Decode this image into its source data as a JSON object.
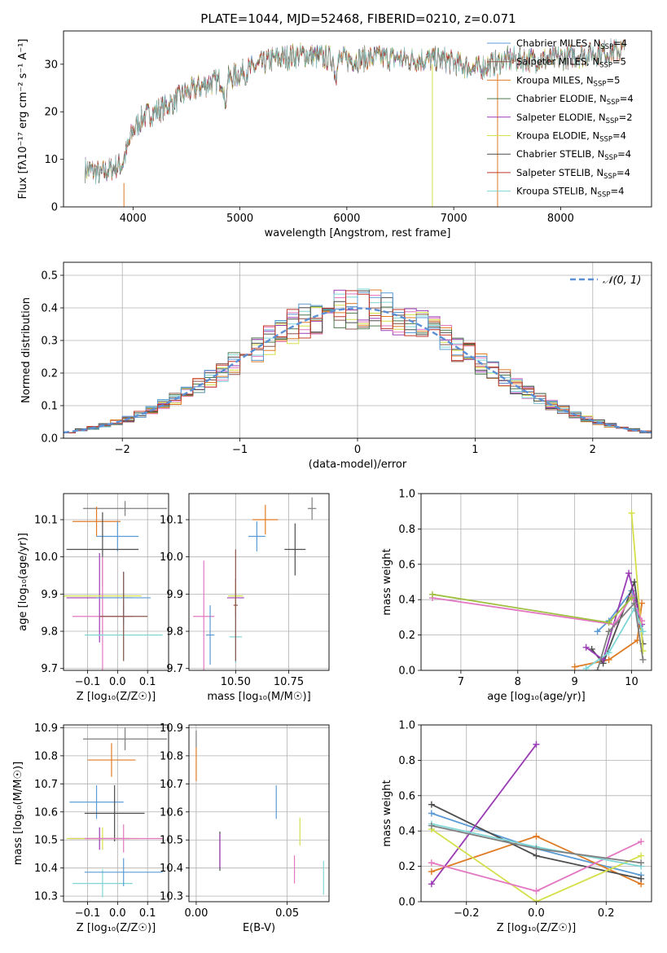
{
  "figure": {
    "title": "PLATE=1044, MJD=52468, FIBERID=0210, z=0.071"
  },
  "colors": {
    "model_colors": [
      "#5b9bd5",
      "#8c564b",
      "#e07b25",
      "#4f7a4f",
      "#9a3bb5",
      "#d4e04a",
      "#4d4d4d",
      "#c0392b",
      "#7fd6d6"
    ],
    "ssp_colors": [
      "#7f7f7f",
      "#e07b25",
      "#5b9bd5",
      "#4d4d4d",
      "#9a3bb5",
      "#d4e04a",
      "#e377c2",
      "#7fd6d6"
    ],
    "normal": "#5b8fd6",
    "grid": "#b0b0b0"
  },
  "chart_data": [
    {
      "id": "spectrum",
      "type": "line",
      "xlabel": "wavelength [Angstrom, rest frame]",
      "ylabel": "Flux [f$_\\lambda$10$^{-17}$ erg cm$^{-2}$ s$^{-1}$ A$^{-1}$]",
      "ylabel_display": "Flux [fλ10⁻¹⁷ erg cm⁻² s⁻¹ A⁻¹]",
      "xlim": [
        3350,
        8850
      ],
      "ylim": [
        0,
        37
      ],
      "xticks": [
        4000,
        5000,
        6000,
        7000,
        8000
      ],
      "yticks": [
        0,
        10,
        20,
        30
      ],
      "legend_loc": "upper right",
      "series": [
        {
          "name": "Chabrier MILES, N$_{SSP}$=4",
          "base": "Chabrier MILES, N",
          "sub": "SSP",
          "rest": "=4"
        },
        {
          "name": "Salpeter MILES, N$_{SSP}$=5",
          "base": "Salpeter MILES, N",
          "sub": "SSP",
          "rest": "=5"
        },
        {
          "name": "Kroupa MILES, N$_{SSP}$=5",
          "base": "Kroupa MILES, N",
          "sub": "SSP",
          "rest": "=5"
        },
        {
          "name": "Chabrier ELODIE, N$_{SSP}$=4",
          "base": "Chabrier ELODIE, N",
          "sub": "SSP",
          "rest": "=4"
        },
        {
          "name": "Salpeter ELODIE, N$_{SSP}$=2",
          "base": "Salpeter ELODIE, N",
          "sub": "SSP",
          "rest": "=2"
        },
        {
          "name": "Kroupa ELODIE, N$_{SSP}$=4",
          "base": "Kroupa ELODIE, N",
          "sub": "SSP",
          "rest": "=4"
        },
        {
          "name": "Chabrier STELIB, N$_{SSP}$=4",
          "base": "Chabrier STELIB, N",
          "sub": "SSP",
          "rest": "=4"
        },
        {
          "name": "Salpeter STELIB, N$_{SSP}$=4",
          "base": "Salpeter STELIB, N",
          "sub": "SSP",
          "rest": "=4"
        },
        {
          "name": "Kroupa STELIB, N$_{SSP}$=4",
          "base": "Kroupa STELIB, N",
          "sub": "SSP",
          "rest": "=4"
        }
      ],
      "continuum": [
        [
          3550,
          8
        ],
        [
          3700,
          7
        ],
        [
          3900,
          9
        ],
        [
          4000,
          16
        ],
        [
          4100,
          19
        ],
        [
          4300,
          21
        ],
        [
          4500,
          24
        ],
        [
          4700,
          26
        ],
        [
          4900,
          27
        ],
        [
          5100,
          29
        ],
        [
          5300,
          31
        ],
        [
          5600,
          32
        ],
        [
          5900,
          31
        ],
        [
          6100,
          31
        ],
        [
          6300,
          31.5
        ],
        [
          6600,
          31
        ],
        [
          6900,
          31
        ],
        [
          7200,
          29
        ],
        [
          7500,
          31
        ],
        [
          7900,
          31
        ],
        [
          8200,
          32
        ],
        [
          8600,
          33
        ]
      ]
    },
    {
      "id": "residuals",
      "type": "histogram",
      "xlabel": "(data-model)/error",
      "ylabel": "Normed distribution",
      "xlim": [
        -2.5,
        2.5
      ],
      "ylim": [
        0,
        0.54
      ],
      "xticks": [
        -2,
        -1,
        0,
        1,
        2
      ],
      "xticklabels": [
        "−2",
        "−1",
        "0",
        "1",
        "2"
      ],
      "yticks": [
        0,
        0.1,
        0.2,
        0.3,
        0.4,
        0.5
      ],
      "yticklabels": [
        "0.0",
        "0.1",
        "0.2",
        "0.3",
        "0.4",
        "0.5"
      ],
      "bin_width": 0.1,
      "bin_start": -2.5,
      "reference_curve": {
        "name": "$\\mathcal{N}(0,1)$",
        "label_display": "𝒩(0, 1)"
      },
      "legend_loc": "upper right"
    },
    {
      "id": "age_vs_Z",
      "type": "errorbar",
      "xlabel": "Z [log$_{10}$(Z/Z$_\\odot$)]",
      "xlabel_display": "Z [log₁₀(Z/Z☉)]",
      "ylabel": "age  [log$_{10}$(age/yr)]",
      "ylabel_display": "age  [log₁₀(age/yr)]",
      "xlim": [
        -0.18,
        0.17
      ],
      "ylim": [
        9.695,
        10.17
      ],
      "xticks": [
        -0.1,
        0.0,
        0.1
      ],
      "xticklabels": [
        "−0.1",
        "0.0",
        "0.1"
      ],
      "yticks": [
        9.7,
        9.8,
        9.9,
        10.0,
        10.1
      ],
      "yticklabels": [
        "9.7",
        "9.8",
        "9.9",
        "10.0",
        "10.1"
      ],
      "points": [
        {
          "x": 0.025,
          "y": 10.13,
          "xerr": 0.14,
          "yerr": 0.02
        },
        {
          "x": -0.07,
          "y": 10.095,
          "xerr": 0.08,
          "yerr": 0.04
        },
        {
          "x": 0.0,
          "y": 10.055,
          "xerr": 0.07,
          "yerr": 0.04
        },
        {
          "x": -0.05,
          "y": 10.02,
          "xerr": 0.12,
          "yerr": 0.1
        },
        {
          "x": -0.06,
          "y": 9.89,
          "xerr": 0.11,
          "yerr": 0.12
        },
        {
          "x": -0.05,
          "y": 9.895,
          "xerr": 0.13,
          "yerr": 0.1
        },
        {
          "x": -0.05,
          "y": 9.84,
          "xerr": 0.1,
          "yerr": 0.16
        },
        {
          "x": 0.02,
          "y": 9.79,
          "xerr": 0.13,
          "yerr": 0.07
        },
        {
          "x": 0.02,
          "y": 9.89,
          "xerr": 0.09,
          "yerr": 0.07
        },
        {
          "x": 0.02,
          "y": 9.84,
          "xerr": 0.08,
          "yerr": 0.12
        }
      ]
    },
    {
      "id": "age_vs_mass",
      "type": "errorbar",
      "xlabel": "mass [log$_{10}$(M/M$_\\odot$)]",
      "xlabel_display": "mass [log₁₀(M/M☉)]",
      "xlim": [
        10.28,
        10.94
      ],
      "ylim": [
        9.695,
        10.17
      ],
      "xticks": [
        10.5,
        10.75
      ],
      "xticklabels": [
        "10.50",
        "10.75"
      ],
      "yticks": [
        9.7,
        9.8,
        9.9,
        10.0,
        10.1
      ],
      "yticklabels": [
        "9.7",
        "9.8",
        "9.9",
        "10.0",
        "10.1"
      ],
      "points": [
        {
          "x": 10.86,
          "y": 10.13,
          "xerr": 0.02,
          "yerr": 0.03
        },
        {
          "x": 10.64,
          "y": 10.1,
          "xerr": 0.06,
          "yerr": 0.04
        },
        {
          "x": 10.6,
          "y": 10.055,
          "xerr": 0.04,
          "yerr": 0.04
        },
        {
          "x": 10.78,
          "y": 10.02,
          "xerr": 0.05,
          "yerr": 0.07
        },
        {
          "x": 10.5,
          "y": 9.89,
          "xerr": 0.04,
          "yerr": 0.05
        },
        {
          "x": 10.5,
          "y": 9.895,
          "xerr": 0.035,
          "yerr": 0.04
        },
        {
          "x": 10.35,
          "y": 9.84,
          "xerr": 0.05,
          "yerr": 0.15
        },
        {
          "x": 10.5,
          "y": 9.785,
          "xerr": 0.03,
          "yerr": 0.07
        },
        {
          "x": 10.38,
          "y": 9.79,
          "xerr": 0.02,
          "yerr": 0.08
        },
        {
          "x": 10.5,
          "y": 9.87,
          "xerr": 0.01,
          "yerr": 0.15
        }
      ]
    },
    {
      "id": "weight_vs_age",
      "type": "line",
      "xlabel": "age  [log$_{10}$(age/yr)]",
      "xlabel_display": "age  [log₁₀(age/yr)]",
      "ylabel": "mass weight",
      "xlim": [
        6.3,
        10.35
      ],
      "ylim": [
        0,
        1
      ],
      "xticks": [
        7,
        8,
        9,
        10
      ],
      "yticks": [
        0,
        0.2,
        0.4,
        0.6,
        0.8,
        1.0
      ],
      "yticklabels": [
        "0.0",
        "0.2",
        "0.4",
        "0.6",
        "0.8",
        "1.0"
      ],
      "series": [
        {
          "x": [
            9.4,
            9.6,
            10.0,
            10.15
          ],
          "y": [
            0.22,
            0.28,
            0.45,
            0.25
          ]
        },
        {
          "x": [
            9.0,
            9.6,
            10.1,
            10.18
          ],
          "y": [
            0.02,
            0.06,
            0.17,
            0.38
          ]
        },
        {
          "x": [
            9.3,
            9.5,
            10.05,
            10.2
          ],
          "y": [
            0.12,
            0.04,
            0.5,
            0.15
          ]
        },
        {
          "x": [
            9.2,
            9.5,
            9.95,
            10.18
          ],
          "y": [
            0.13,
            0.06,
            0.55,
            0.26
          ]
        },
        {
          "x": [
            10.0,
            10.2
          ],
          "y": [
            0.89,
            0.11
          ]
        },
        {
          "x": [
            6.5,
            9.7,
            10.0,
            10.18
          ],
          "y": [
            0.41,
            0.26,
            0.42,
            0.28
          ]
        },
        {
          "x": [
            9.2,
            9.6,
            10.05,
            10.2
          ],
          "y": [
            0.01,
            0.1,
            0.35,
            0.22
          ]
        },
        {
          "x": [
            9.4,
            9.6,
            10.05,
            10.2
          ],
          "y": [
            0.0,
            0.22,
            0.38,
            0.06
          ]
        },
        {
          "x": [
            6.5,
            9.6,
            10.0
          ],
          "y": [
            0.43,
            0.27,
            0.41
          ]
        }
      ]
    },
    {
      "id": "mass_vs_Z",
      "type": "errorbar",
      "xlabel": "Z [log$_{10}$(Z/Z$_\\odot$)]",
      "xlabel_display": "Z [log₁₀(Z/Z☉)]",
      "ylabel": "mass [log$_{10}$(M/M$_\\odot$)]",
      "ylabel_display": "mass [log₁₀(M/M☉)]",
      "xlim": [
        -0.18,
        0.17
      ],
      "ylim": [
        10.28,
        10.91
      ],
      "xticks": [
        -0.1,
        0.0,
        0.1
      ],
      "xticklabels": [
        "−0.1",
        "0.0",
        "0.1"
      ],
      "yticks": [
        10.3,
        10.4,
        10.5,
        10.6,
        10.7,
        10.8,
        10.9
      ],
      "yticklabels": [
        "10.3",
        "10.4",
        "10.5",
        "10.6",
        "10.7",
        "10.8",
        "10.9"
      ],
      "points": [
        {
          "x": 0.025,
          "y": 10.86,
          "xerr": 0.14,
          "yerr": 0.04
        },
        {
          "x": -0.02,
          "y": 10.785,
          "xerr": 0.08,
          "yerr": 0.06
        },
        {
          "x": -0.07,
          "y": 10.635,
          "xerr": 0.09,
          "yerr": 0.06
        },
        {
          "x": -0.01,
          "y": 10.595,
          "xerr": 0.1,
          "yerr": 0.1
        },
        {
          "x": -0.06,
          "y": 10.505,
          "xerr": 0.1,
          "yerr": 0.04
        },
        {
          "x": -0.05,
          "y": 10.505,
          "xerr": 0.12,
          "yerr": 0.04
        },
        {
          "x": 0.02,
          "y": 10.505,
          "xerr": 0.13,
          "yerr": 0.05
        },
        {
          "x": -0.05,
          "y": 10.345,
          "xerr": 0.1,
          "yerr": 0.05
        },
        {
          "x": 0.02,
          "y": 10.385,
          "xerr": 0.13,
          "yerr": 0.05
        }
      ]
    },
    {
      "id": "mass_vs_ebv",
      "type": "errorbar",
      "xlabel": "E(B-V)",
      "xlim": [
        -0.004,
        0.073
      ],
      "ylim": [
        10.28,
        10.91
      ],
      "xticks": [
        0.0,
        0.05
      ],
      "xticklabels": [
        "0.00",
        "0.05"
      ],
      "yticks": [
        10.3,
        10.4,
        10.5,
        10.6,
        10.7,
        10.8,
        10.9
      ],
      "yticklabels": [
        "10.3",
        "10.4",
        "10.5",
        "10.6",
        "10.7",
        "10.8",
        "10.9"
      ],
      "points": [
        {
          "x": 0.0,
          "y": 10.86,
          "xerr": 0,
          "yerr": 0.03
        },
        {
          "x": 0.0,
          "y": 10.77,
          "xerr": 0,
          "yerr": 0.06
        },
        {
          "x": 0.044,
          "y": 10.635,
          "xerr": 0,
          "yerr": 0.06
        },
        {
          "x": 0.013,
          "y": 10.46,
          "xerr": 0,
          "yerr": 0.07
        },
        {
          "x": 0.013,
          "y": 10.46,
          "xerr": 0,
          "yerr": 0.06
        },
        {
          "x": 0.057,
          "y": 10.53,
          "xerr": 0,
          "yerr": 0.05
        },
        {
          "x": 0.054,
          "y": 10.395,
          "xerr": 0,
          "yerr": 0.05
        },
        {
          "x": 0.07,
          "y": 10.365,
          "xerr": 0,
          "yerr": 0.06
        }
      ]
    },
    {
      "id": "weight_vs_Z",
      "type": "line",
      "xlabel": "Z [log$_{10}$(Z/Z$_\\odot$)]",
      "xlabel_display": "Z [log₁₀(Z/Z☉)]",
      "ylabel": "mass weight",
      "xlim": [
        -0.33,
        0.33
      ],
      "ylim": [
        0,
        1
      ],
      "xticks": [
        -0.2,
        0.0,
        0.2
      ],
      "xticklabels": [
        "−0.2",
        "0.0",
        "0.2"
      ],
      "yticks": [
        0,
        0.2,
        0.4,
        0.6,
        0.8,
        1.0
      ],
      "yticklabels": [
        "0.0",
        "0.2",
        "0.4",
        "0.6",
        "0.8",
        "1.0"
      ],
      "series": [
        {
          "x": [
            -0.3,
            0.0,
            0.3
          ],
          "y": [
            0.5,
            0.3,
            0.15
          ]
        },
        {
          "x": [
            -0.3,
            0.0,
            0.3
          ],
          "y": [
            0.17,
            0.37,
            0.1
          ]
        },
        {
          "x": [
            -0.3,
            0.0,
            0.3
          ],
          "y": [
            0.55,
            0.26,
            0.13
          ]
        },
        {
          "x": [
            -0.3,
            0.0
          ],
          "y": [
            0.1,
            0.89
          ]
        },
        {
          "x": [
            -0.3,
            0.0,
            0.3
          ],
          "y": [
            0.41,
            0.0,
            0.26
          ]
        },
        {
          "x": [
            -0.3,
            0.0,
            0.3
          ],
          "y": [
            0.22,
            0.06,
            0.34
          ]
        },
        {
          "x": [
            -0.3,
            0.0,
            0.3
          ],
          "y": [
            0.44,
            0.31,
            0.2
          ]
        },
        {
          "x": [
            -0.3,
            0.0,
            0.3
          ],
          "y": [
            0.43,
            0.3,
            0.22
          ]
        }
      ]
    }
  ]
}
